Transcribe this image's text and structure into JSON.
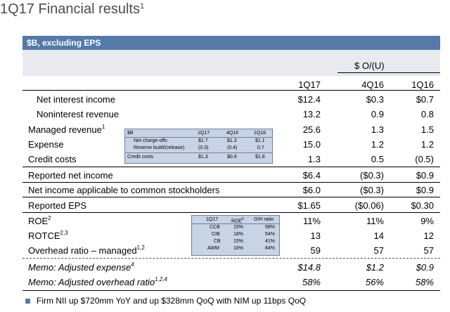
{
  "title": "1Q17 Financial results",
  "title_sup": "1",
  "header_bar": "$B, excluding EPS",
  "change_header": "$ O/(U)",
  "columns": [
    "1Q17",
    "4Q16",
    "1Q16"
  ],
  "rows": [
    {
      "label": "Net interest income",
      "sup": "",
      "v": [
        "$12.4",
        "$0.3",
        "$0.7"
      ]
    },
    {
      "label": "Noninterest revenue",
      "sup": "",
      "v": [
        "13.2",
        "0.9",
        "0.8"
      ]
    },
    {
      "label": "Managed revenue",
      "sup": "1",
      "v": [
        "25.6",
        "1.3",
        "1.5"
      ]
    },
    {
      "label": "Expense",
      "sup": "",
      "v": [
        "15.0",
        "1.2",
        "1.2"
      ]
    },
    {
      "label": "Credit costs",
      "sup": "",
      "v": [
        "1.3",
        "0.5",
        "(0.5)"
      ]
    },
    {
      "label": "Reported net income",
      "sup": "",
      "v": [
        "$6.4",
        "($0.3)",
        "$0.9"
      ]
    },
    {
      "label": "Net income applicable to common stockholders",
      "sup": "",
      "v": [
        "$6.0",
        "($0.3)",
        "$0.9"
      ]
    },
    {
      "label": "Reported EPS",
      "sup": "",
      "v": [
        "$1.65",
        "($0.06)",
        "$0.30"
      ]
    },
    {
      "label": "ROE",
      "sup": "2",
      "v": [
        "11%",
        "11%",
        "9%"
      ]
    },
    {
      "label": "ROTCE",
      "sup": "2,3",
      "v": [
        "13",
        "14",
        "12"
      ]
    },
    {
      "label": "Overhead ratio – managed",
      "sup": "1,2",
      "v": [
        "59",
        "57",
        "57"
      ]
    },
    {
      "label": "Memo: Adjusted expense",
      "sup": "4",
      "v": [
        "$14.8",
        "$1.2",
        "$0.9"
      ]
    },
    {
      "label": "Memo: Adjusted overhead ratio",
      "sup": "1,2,4",
      "v": [
        "58%",
        "56%",
        "58%"
      ]
    }
  ],
  "credit_inset": {
    "header": [
      "$B",
      "1Q17",
      "4Q16",
      "1Q16"
    ],
    "rows": [
      [
        "Net charge-offs",
        "$1.7",
        "$1.3",
        "$1.1"
      ],
      [
        "Reserve build/(release)",
        "(0.3)",
        "(0.4)",
        "0.7"
      ],
      [
        "Credit costs",
        "$1.3",
        "$0.9",
        "$1.8"
      ]
    ]
  },
  "roe_inset": {
    "header": [
      "",
      "1Q17",
      "ROE",
      "O/H ratio"
    ],
    "roe_sup": "5",
    "rows": [
      [
        "CCB",
        "15%",
        "58%"
      ],
      [
        "CIB",
        "18%",
        "54%"
      ],
      [
        "CB",
        "15%",
        "41%"
      ],
      [
        "AWM",
        "16%",
        "84%"
      ]
    ]
  },
  "footnote": "Firm NII up $720mm YoY and up $328mm QoQ with NIM up 11bps QoQ"
}
